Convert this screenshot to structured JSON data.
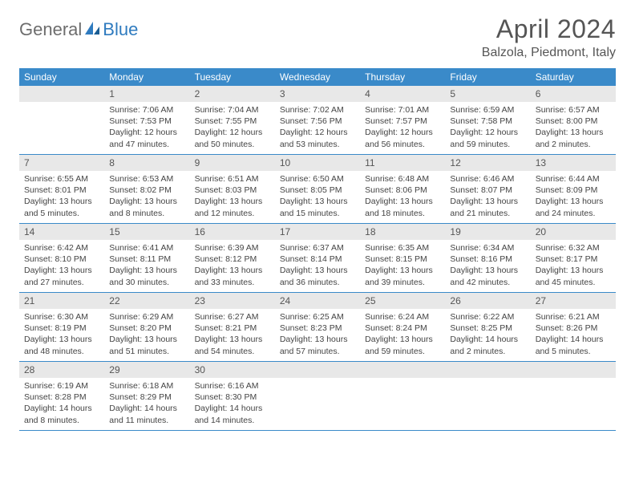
{
  "brand": {
    "part1": "General",
    "part2": "Blue"
  },
  "title": "April 2024",
  "location": "Balzola, Piedmont, Italy",
  "colors": {
    "header_bg": "#3a8ac9",
    "header_text": "#ffffff",
    "date_bar_bg": "#e8e8e8",
    "date_bar_text": "#555555",
    "body_text": "#444444",
    "border": "#3a8ac9",
    "brand_gray": "#6d6d6d",
    "brand_blue": "#2f7bbf"
  },
  "day_names": [
    "Sunday",
    "Monday",
    "Tuesday",
    "Wednesday",
    "Thursday",
    "Friday",
    "Saturday"
  ],
  "weeks": [
    [
      {
        "date": "",
        "empty": true
      },
      {
        "date": "1",
        "sunrise": "Sunrise: 7:06 AM",
        "sunset": "Sunset: 7:53 PM",
        "daylight": "Daylight: 12 hours and 47 minutes."
      },
      {
        "date": "2",
        "sunrise": "Sunrise: 7:04 AM",
        "sunset": "Sunset: 7:55 PM",
        "daylight": "Daylight: 12 hours and 50 minutes."
      },
      {
        "date": "3",
        "sunrise": "Sunrise: 7:02 AM",
        "sunset": "Sunset: 7:56 PM",
        "daylight": "Daylight: 12 hours and 53 minutes."
      },
      {
        "date": "4",
        "sunrise": "Sunrise: 7:01 AM",
        "sunset": "Sunset: 7:57 PM",
        "daylight": "Daylight: 12 hours and 56 minutes."
      },
      {
        "date": "5",
        "sunrise": "Sunrise: 6:59 AM",
        "sunset": "Sunset: 7:58 PM",
        "daylight": "Daylight: 12 hours and 59 minutes."
      },
      {
        "date": "6",
        "sunrise": "Sunrise: 6:57 AM",
        "sunset": "Sunset: 8:00 PM",
        "daylight": "Daylight: 13 hours and 2 minutes."
      }
    ],
    [
      {
        "date": "7",
        "sunrise": "Sunrise: 6:55 AM",
        "sunset": "Sunset: 8:01 PM",
        "daylight": "Daylight: 13 hours and 5 minutes."
      },
      {
        "date": "8",
        "sunrise": "Sunrise: 6:53 AM",
        "sunset": "Sunset: 8:02 PM",
        "daylight": "Daylight: 13 hours and 8 minutes."
      },
      {
        "date": "9",
        "sunrise": "Sunrise: 6:51 AM",
        "sunset": "Sunset: 8:03 PM",
        "daylight": "Daylight: 13 hours and 12 minutes."
      },
      {
        "date": "10",
        "sunrise": "Sunrise: 6:50 AM",
        "sunset": "Sunset: 8:05 PM",
        "daylight": "Daylight: 13 hours and 15 minutes."
      },
      {
        "date": "11",
        "sunrise": "Sunrise: 6:48 AM",
        "sunset": "Sunset: 8:06 PM",
        "daylight": "Daylight: 13 hours and 18 minutes."
      },
      {
        "date": "12",
        "sunrise": "Sunrise: 6:46 AM",
        "sunset": "Sunset: 8:07 PM",
        "daylight": "Daylight: 13 hours and 21 minutes."
      },
      {
        "date": "13",
        "sunrise": "Sunrise: 6:44 AM",
        "sunset": "Sunset: 8:09 PM",
        "daylight": "Daylight: 13 hours and 24 minutes."
      }
    ],
    [
      {
        "date": "14",
        "sunrise": "Sunrise: 6:42 AM",
        "sunset": "Sunset: 8:10 PM",
        "daylight": "Daylight: 13 hours and 27 minutes."
      },
      {
        "date": "15",
        "sunrise": "Sunrise: 6:41 AM",
        "sunset": "Sunset: 8:11 PM",
        "daylight": "Daylight: 13 hours and 30 minutes."
      },
      {
        "date": "16",
        "sunrise": "Sunrise: 6:39 AM",
        "sunset": "Sunset: 8:12 PM",
        "daylight": "Daylight: 13 hours and 33 minutes."
      },
      {
        "date": "17",
        "sunrise": "Sunrise: 6:37 AM",
        "sunset": "Sunset: 8:14 PM",
        "daylight": "Daylight: 13 hours and 36 minutes."
      },
      {
        "date": "18",
        "sunrise": "Sunrise: 6:35 AM",
        "sunset": "Sunset: 8:15 PM",
        "daylight": "Daylight: 13 hours and 39 minutes."
      },
      {
        "date": "19",
        "sunrise": "Sunrise: 6:34 AM",
        "sunset": "Sunset: 8:16 PM",
        "daylight": "Daylight: 13 hours and 42 minutes."
      },
      {
        "date": "20",
        "sunrise": "Sunrise: 6:32 AM",
        "sunset": "Sunset: 8:17 PM",
        "daylight": "Daylight: 13 hours and 45 minutes."
      }
    ],
    [
      {
        "date": "21",
        "sunrise": "Sunrise: 6:30 AM",
        "sunset": "Sunset: 8:19 PM",
        "daylight": "Daylight: 13 hours and 48 minutes."
      },
      {
        "date": "22",
        "sunrise": "Sunrise: 6:29 AM",
        "sunset": "Sunset: 8:20 PM",
        "daylight": "Daylight: 13 hours and 51 minutes."
      },
      {
        "date": "23",
        "sunrise": "Sunrise: 6:27 AM",
        "sunset": "Sunset: 8:21 PM",
        "daylight": "Daylight: 13 hours and 54 minutes."
      },
      {
        "date": "24",
        "sunrise": "Sunrise: 6:25 AM",
        "sunset": "Sunset: 8:23 PM",
        "daylight": "Daylight: 13 hours and 57 minutes."
      },
      {
        "date": "25",
        "sunrise": "Sunrise: 6:24 AM",
        "sunset": "Sunset: 8:24 PM",
        "daylight": "Daylight: 13 hours and 59 minutes."
      },
      {
        "date": "26",
        "sunrise": "Sunrise: 6:22 AM",
        "sunset": "Sunset: 8:25 PM",
        "daylight": "Daylight: 14 hours and 2 minutes."
      },
      {
        "date": "27",
        "sunrise": "Sunrise: 6:21 AM",
        "sunset": "Sunset: 8:26 PM",
        "daylight": "Daylight: 14 hours and 5 minutes."
      }
    ],
    [
      {
        "date": "28",
        "sunrise": "Sunrise: 6:19 AM",
        "sunset": "Sunset: 8:28 PM",
        "daylight": "Daylight: 14 hours and 8 minutes."
      },
      {
        "date": "29",
        "sunrise": "Sunrise: 6:18 AM",
        "sunset": "Sunset: 8:29 PM",
        "daylight": "Daylight: 14 hours and 11 minutes."
      },
      {
        "date": "30",
        "sunrise": "Sunrise: 6:16 AM",
        "sunset": "Sunset: 8:30 PM",
        "daylight": "Daylight: 14 hours and 14 minutes."
      },
      {
        "date": "",
        "empty": true
      },
      {
        "date": "",
        "empty": true
      },
      {
        "date": "",
        "empty": true
      },
      {
        "date": "",
        "empty": true
      }
    ]
  ]
}
